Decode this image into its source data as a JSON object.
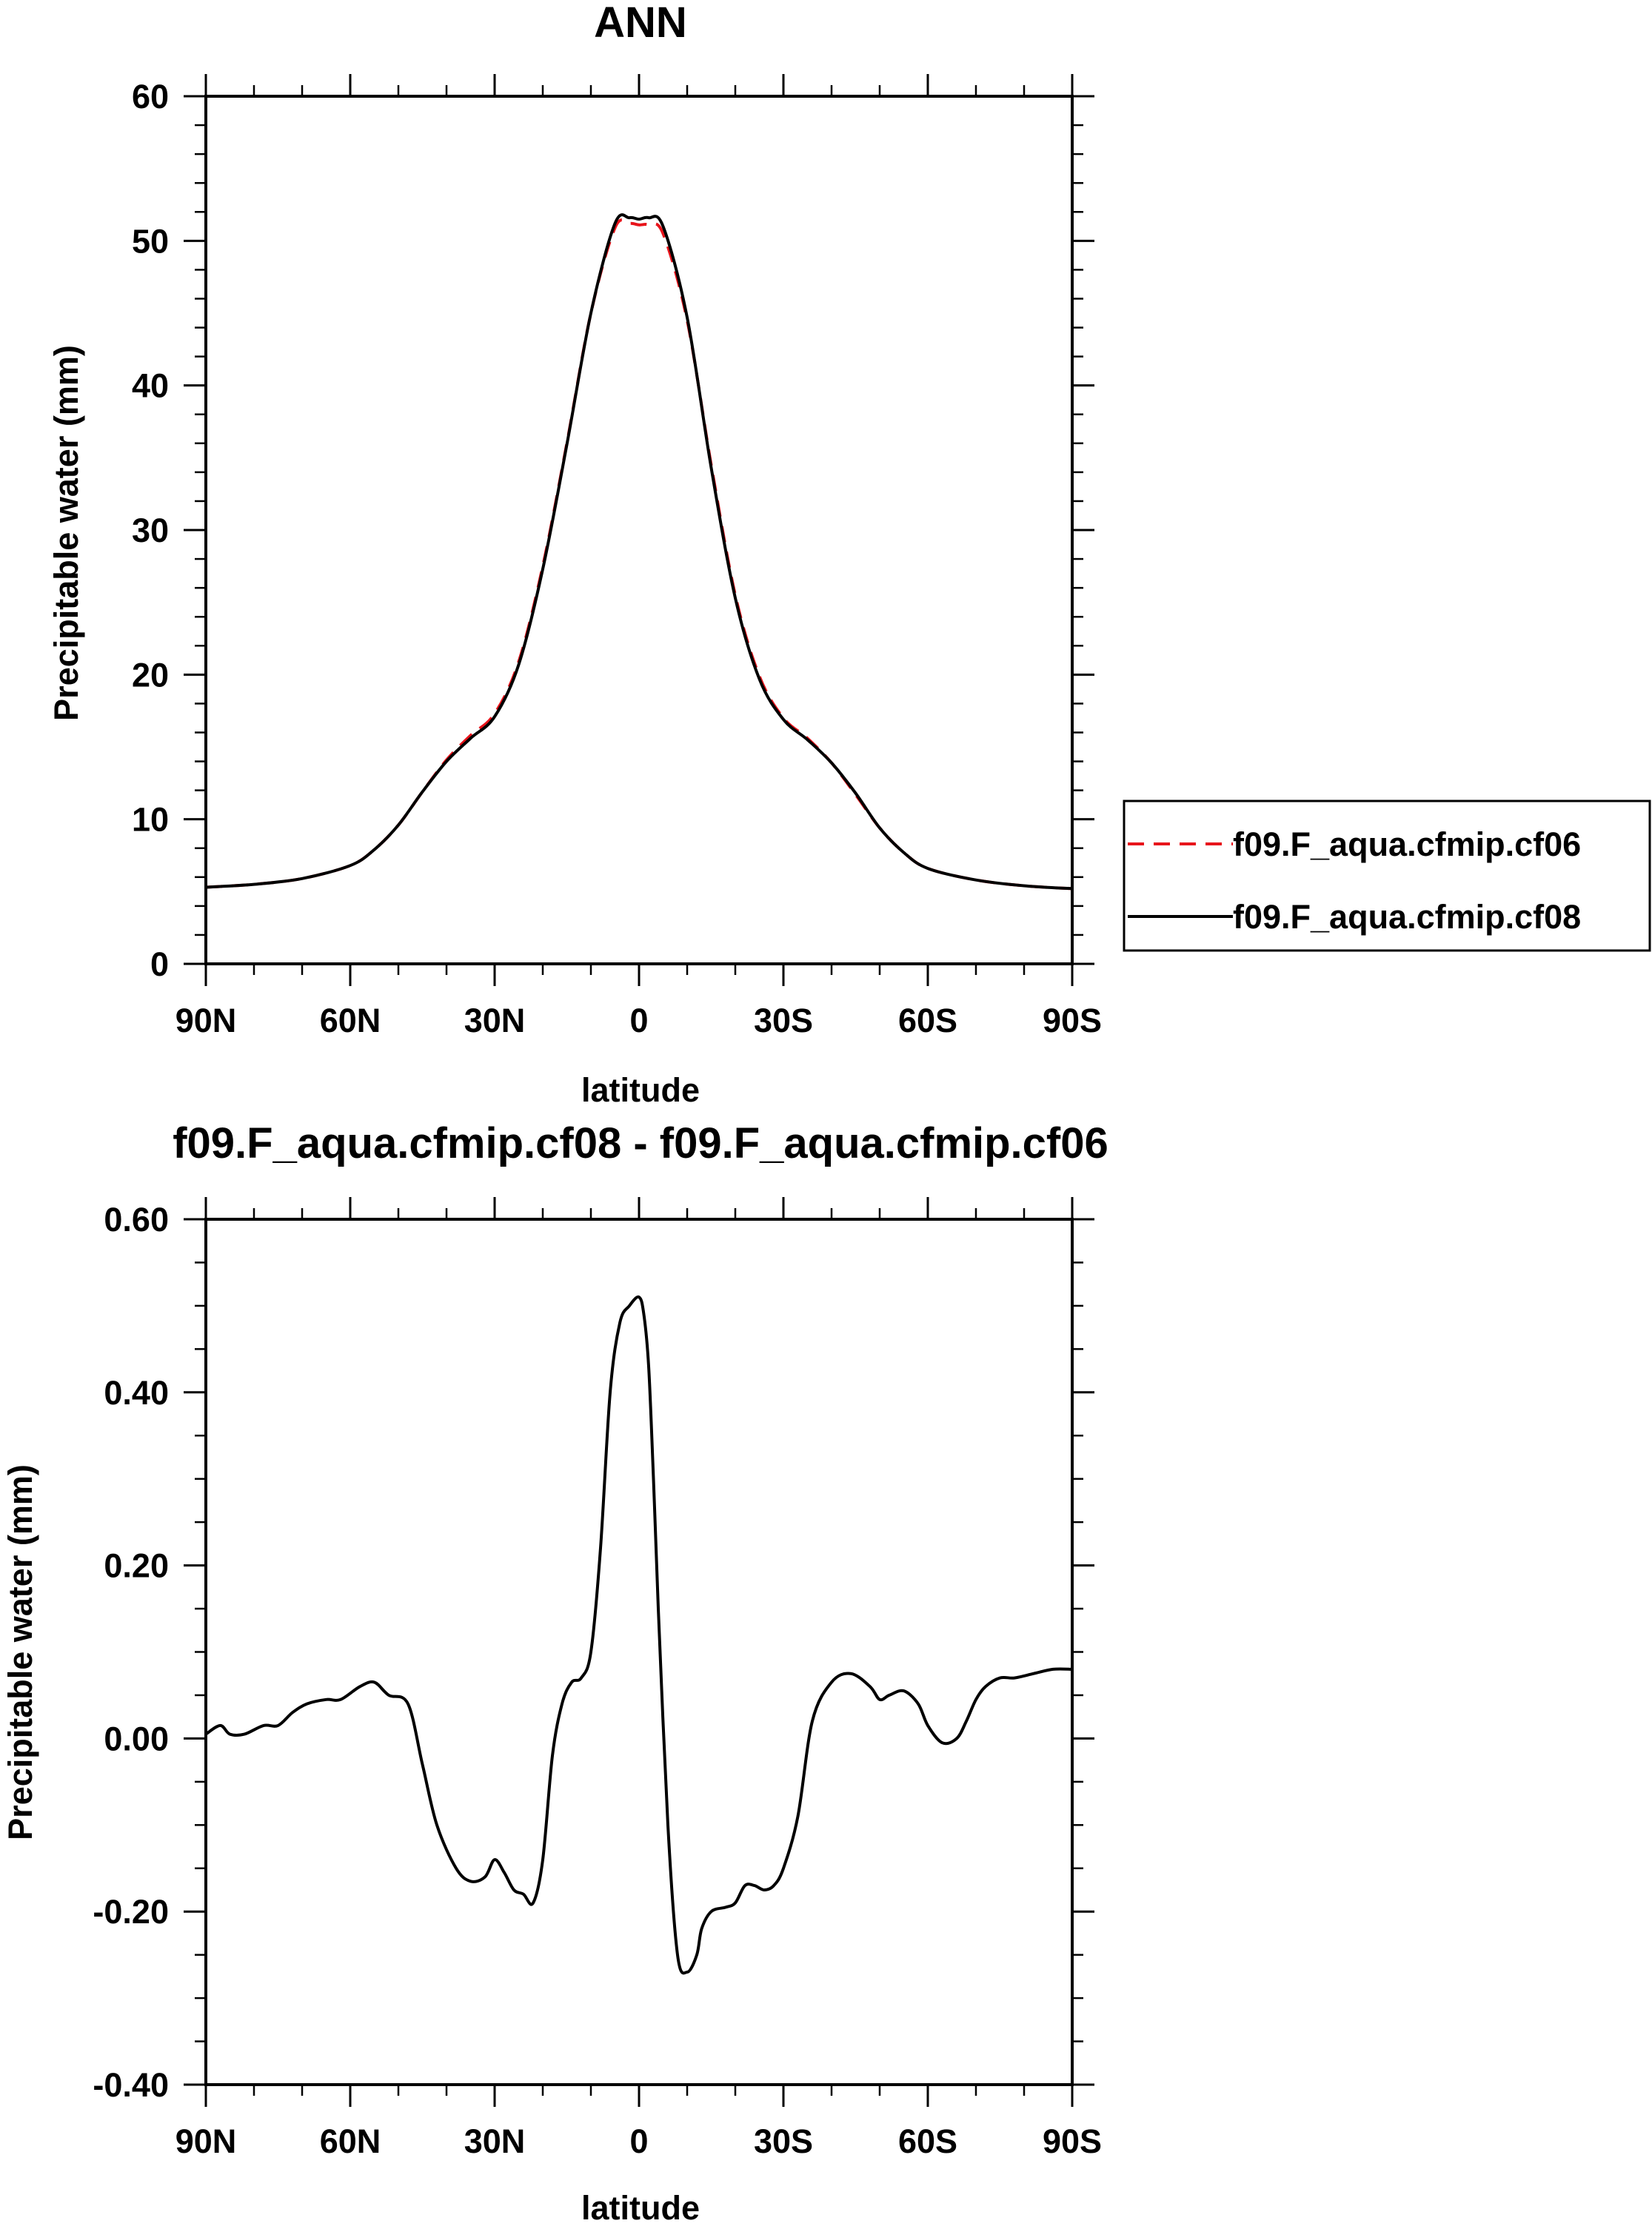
{
  "chart_data": [
    {
      "type": "line",
      "title": "ANN",
      "xlabel": "latitude",
      "ylabel": "Precipitable water (mm)",
      "xlim": [
        -90,
        90
      ],
      "ylim": [
        0,
        60
      ],
      "xticks": [
        {
          "value": -90,
          "label": "90N"
        },
        {
          "value": -60,
          "label": "60N"
        },
        {
          "value": -30,
          "label": "30N"
        },
        {
          "value": 0,
          "label": "0"
        },
        {
          "value": 30,
          "label": "30S"
        },
        {
          "value": 60,
          "label": "60S"
        },
        {
          "value": 90,
          "label": "90S"
        }
      ],
      "yticks": [
        {
          "value": 0,
          "label": "0"
        },
        {
          "value": 10,
          "label": "10"
        },
        {
          "value": 20,
          "label": "20"
        },
        {
          "value": 30,
          "label": "30"
        },
        {
          "value": 40,
          "label": "40"
        },
        {
          "value": 50,
          "label": "50"
        },
        {
          "value": 60,
          "label": "60"
        }
      ],
      "legend": {
        "placement": "right"
      },
      "series": [
        {
          "name": "f09.F_aqua.cfmip.cf06",
          "color": "#e8141b",
          "dash": "dashed",
          "x": [
            -90,
            -80,
            -70,
            -60,
            -55,
            -50,
            -45,
            -40,
            -35,
            -30,
            -25,
            -20,
            -15,
            -10,
            -5,
            -2,
            0,
            2,
            5,
            10,
            15,
            20,
            25,
            30,
            35,
            40,
            45,
            50,
            55,
            60,
            70,
            80,
            90
          ],
          "y": [
            5.3,
            5.5,
            5.9,
            6.8,
            7.9,
            9.6,
            11.9,
            14.1,
            15.8,
            17.3,
            20.9,
            27.5,
            36.0,
            45.0,
            50.9,
            51.2,
            51.1,
            51.1,
            50.5,
            44.5,
            34.5,
            25.5,
            19.9,
            17.0,
            15.6,
            13.9,
            11.7,
            9.4,
            7.7,
            6.6,
            5.8,
            5.4,
            5.2
          ]
        },
        {
          "name": "f09.F_aqua.cfmip.cf08",
          "color": "#000000",
          "dash": "solid",
          "x": [
            -90,
            -80,
            -70,
            -60,
            -55,
            -50,
            -45,
            -40,
            -35,
            -30,
            -25,
            -20,
            -15,
            -10,
            -5,
            -2,
            0,
            2,
            5,
            10,
            15,
            20,
            25,
            30,
            35,
            40,
            45,
            50,
            55,
            60,
            70,
            80,
            90
          ],
          "y": [
            5.3,
            5.5,
            5.9,
            6.8,
            7.9,
            9.6,
            11.9,
            14.0,
            15.6,
            17.1,
            20.7,
            27.3,
            35.9,
            45.0,
            51.2,
            51.6,
            51.5,
            51.6,
            51.0,
            44.7,
            34.3,
            25.3,
            19.7,
            16.9,
            15.5,
            13.9,
            11.8,
            9.4,
            7.7,
            6.6,
            5.8,
            5.4,
            5.2
          ]
        }
      ]
    },
    {
      "type": "line",
      "title": "f09.F_aqua.cfmip.cf08 - f09.F_aqua.cfmip.cf06",
      "xlabel": "latitude",
      "ylabel": "Precipitable water (mm)",
      "xlim": [
        -90,
        90
      ],
      "ylim": [
        -0.4,
        0.6
      ],
      "xticks": [
        {
          "value": -90,
          "label": "90N"
        },
        {
          "value": -60,
          "label": "60N"
        },
        {
          "value": -30,
          "label": "30N"
        },
        {
          "value": 0,
          "label": "0"
        },
        {
          "value": 30,
          "label": "30S"
        },
        {
          "value": 60,
          "label": "60S"
        },
        {
          "value": 90,
          "label": "90S"
        }
      ],
      "yticks": [
        {
          "value": -0.4,
          "label": "-0.40"
        },
        {
          "value": -0.2,
          "label": "-0.20"
        },
        {
          "value": 0.0,
          "label": "0.00"
        },
        {
          "value": 0.2,
          "label": "0.20"
        },
        {
          "value": 0.4,
          "label": "0.40"
        },
        {
          "value": 0.6,
          "label": "0.60"
        }
      ],
      "series": [
        {
          "name": "f09.F_aqua.cfmip.cf08 - f09.F_aqua.cfmip.cf06",
          "color": "#000000",
          "dash": "solid",
          "x": [
            -90,
            -87,
            -85,
            -82,
            -78,
            -75,
            -72,
            -69,
            -65,
            -62,
            -58,
            -55,
            -52,
            -48,
            -45,
            -42,
            -38,
            -35,
            -32,
            -30,
            -28,
            -26,
            -24,
            -22,
            -20,
            -18,
            -16,
            -14,
            -12,
            -10,
            -8,
            -6,
            -4,
            -2,
            0,
            1,
            2,
            3,
            4,
            6,
            8,
            10,
            12,
            13,
            15,
            18,
            20,
            22,
            24,
            26,
            28,
            30,
            33,
            36,
            40,
            44,
            48,
            50,
            52,
            55,
            58,
            60,
            63,
            66,
            68,
            70,
            72,
            75,
            78,
            82,
            86,
            90
          ],
          "y": [
            0.005,
            0.015,
            0.005,
            0.005,
            0.015,
            0.015,
            0.03,
            0.04,
            0.045,
            0.045,
            0.06,
            0.065,
            0.05,
            0.04,
            -0.03,
            -0.1,
            -0.15,
            -0.165,
            -0.16,
            -0.14,
            -0.155,
            -0.175,
            -0.18,
            -0.19,
            -0.14,
            -0.02,
            0.04,
            0.065,
            0.07,
            0.1,
            0.22,
            0.4,
            0.48,
            0.5,
            0.51,
            0.49,
            0.43,
            0.3,
            0.15,
            -0.1,
            -0.25,
            -0.27,
            -0.25,
            -0.22,
            -0.2,
            -0.195,
            -0.19,
            -0.17,
            -0.17,
            -0.175,
            -0.17,
            -0.15,
            -0.09,
            0.02,
            0.065,
            0.075,
            0.06,
            0.045,
            0.05,
            0.055,
            0.04,
            0.015,
            -0.005,
            0.0,
            0.02,
            0.045,
            0.06,
            0.07,
            0.07,
            0.075,
            0.08,
            0.08
          ]
        }
      ]
    }
  ]
}
